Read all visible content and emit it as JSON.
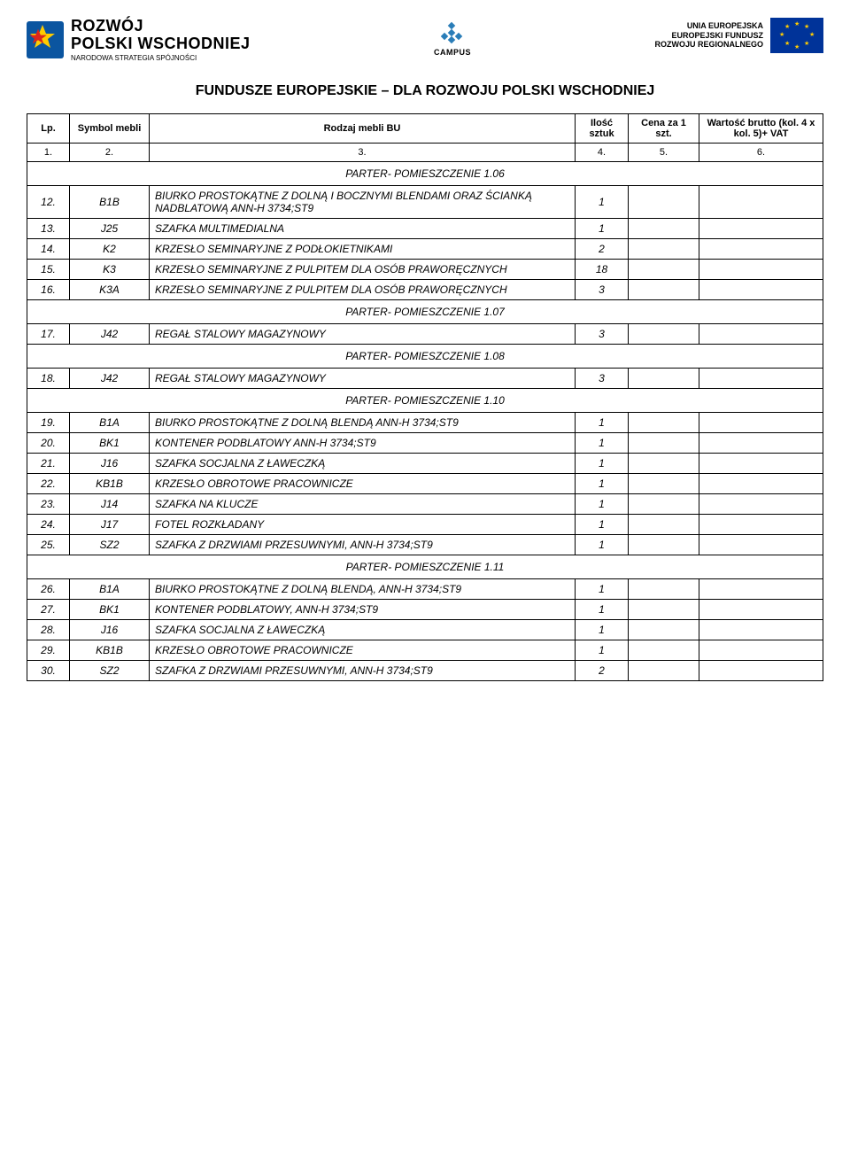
{
  "logos": {
    "left": {
      "line1": "ROZWÓJ",
      "line2": "POLSKI WSCHODNIEJ",
      "sub": "NARODOWA STRATEGIA SPÓJNOŚCI"
    },
    "center": {
      "label": "CAMPUS"
    },
    "right": {
      "l1": "UNIA EUROPEJSKA",
      "l2": "EUROPEJSKI FUNDUSZ",
      "l3": "ROZWOJU REGIONALNEGO"
    }
  },
  "page_title": "FUNDUSZE EUROPEJSKIE – DLA ROZWOJU POLSKI WSCHODNIEJ",
  "table": {
    "headers": {
      "c1": "Lp.",
      "c2": "Symbol mebli",
      "c3": "Rodzaj mebli BU",
      "c4": "Ilość sztuk",
      "c5": "Cena za 1 szt.",
      "c6": "Wartość brutto (kol. 4 x kol. 5)+ VAT"
    },
    "numrow": [
      "1.",
      "2.",
      "3.",
      "4.",
      "5.",
      "6."
    ],
    "rows": [
      {
        "type": "section",
        "label": "PARTER- POMIESZCZENIE 1.06"
      },
      {
        "lp": "12.",
        "sym": "B1B",
        "desc": "BIURKO PROSTOKĄTNE Z DOLNĄ I BOCZNYMI BLENDAMI ORAZ ŚCIANKĄ NADBLATOWĄ ANN-H 3734;ST9",
        "qty": "1"
      },
      {
        "lp": "13.",
        "sym": "J25",
        "desc": "SZAFKA MULTIMEDIALNA",
        "qty": "1"
      },
      {
        "lp": "14.",
        "sym": "K2",
        "desc": "KRZESŁO SEMINARYJNE Z PODŁOKIETNIKAMI",
        "qty": "2"
      },
      {
        "lp": "15.",
        "sym": "K3",
        "desc": "KRZESŁO SEMINARYJNE Z PULPITEM DLA OSÓB PRAWORĘCZNYCH",
        "qty": "18"
      },
      {
        "lp": "16.",
        "sym": "K3A",
        "desc": "KRZESŁO SEMINARYJNE Z PULPITEM DLA OSÓB PRAWORĘCZNYCH",
        "qty": "3"
      },
      {
        "type": "section",
        "label": "PARTER- POMIESZCZENIE 1.07"
      },
      {
        "lp": "17.",
        "sym": "J42",
        "desc": "REGAŁ STALOWY MAGAZYNOWY",
        "qty": "3"
      },
      {
        "type": "section",
        "label": "PARTER- POMIESZCZENIE 1.08"
      },
      {
        "lp": "18.",
        "sym": "J42",
        "desc": "REGAŁ STALOWY MAGAZYNOWY",
        "qty": "3"
      },
      {
        "type": "section",
        "label": "PARTER- POMIESZCZENIE 1.10"
      },
      {
        "lp": "19.",
        "sym": "B1A",
        "desc": "BIURKO PROSTOKĄTNE Z DOLNĄ BLENDĄ ANN-H 3734;ST9",
        "qty": "1"
      },
      {
        "lp": "20.",
        "sym": "BK1",
        "desc": "KONTENER PODBLATOWY ANN-H 3734;ST9",
        "qty": "1"
      },
      {
        "lp": "21.",
        "sym": "J16",
        "desc": "SZAFKA SOCJALNA Z ŁAWECZKĄ",
        "qty": "1"
      },
      {
        "lp": "22.",
        "sym": "KB1B",
        "desc": "KRZESŁO OBROTOWE PRACOWNICZE",
        "qty": "1"
      },
      {
        "lp": "23.",
        "sym": "J14",
        "desc": "SZAFKA NA KLUCZE",
        "qty": "1"
      },
      {
        "lp": "24.",
        "sym": "J17",
        "desc": "FOTEL ROZKŁADANY",
        "qty": "1"
      },
      {
        "lp": "25.",
        "sym": "SZ2",
        "desc": "SZAFKA Z DRZWIAMI PRZESUWNYMI, ANN-H 3734;ST9",
        "qty": "1"
      },
      {
        "type": "section",
        "label": "PARTER- POMIESZCZENIE 1.11"
      },
      {
        "lp": "26.",
        "sym": "B1A",
        "desc": "BIURKO PROSTOKĄTNE Z DOLNĄ BLENDĄ, ANN-H 3734;ST9",
        "qty": "1"
      },
      {
        "lp": "27.",
        "sym": "BK1",
        "desc": "KONTENER PODBLATOWY, ANN-H 3734;ST9",
        "qty": "1"
      },
      {
        "lp": "28.",
        "sym": "J16",
        "desc": "SZAFKA SOCJALNA Z ŁAWECZKĄ",
        "qty": "1"
      },
      {
        "lp": "29.",
        "sym": "KB1B",
        "desc": "KRZESŁO OBROTOWE PRACOWNICZE",
        "qty": "1"
      },
      {
        "lp": "30.",
        "sym": "SZ2",
        "desc": "SZAFKA Z DRZWIAMI PRZESUWNYMI, ANN-H 3734;ST9",
        "qty": "2"
      }
    ]
  }
}
